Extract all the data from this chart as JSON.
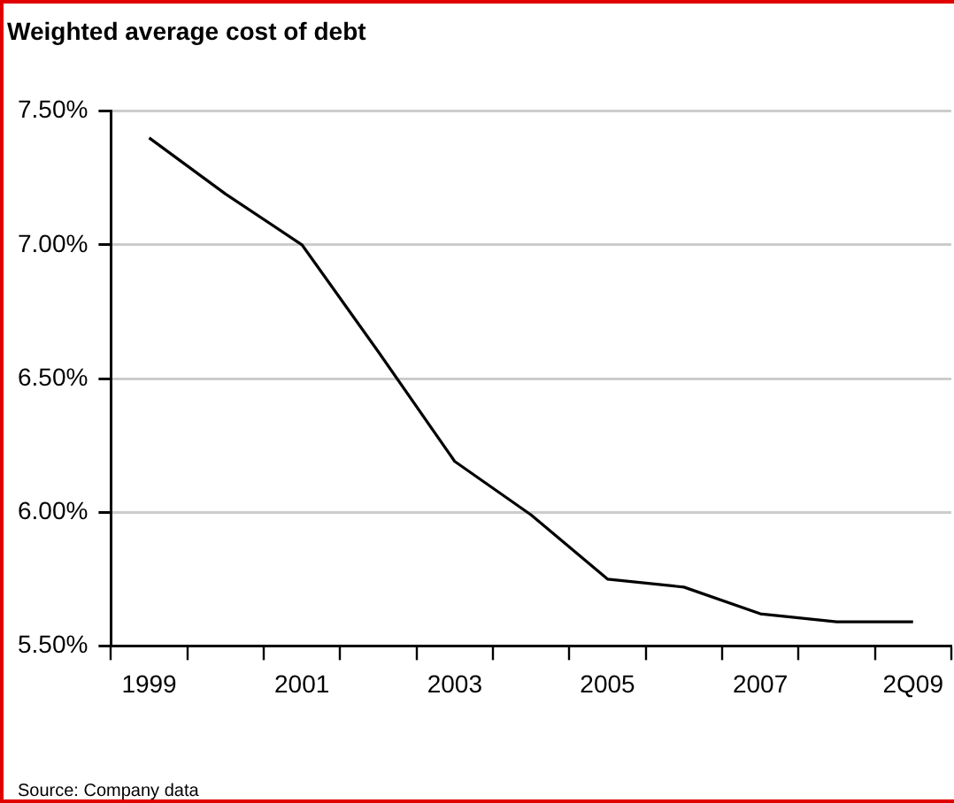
{
  "chart_data": {
    "type": "line",
    "title": "Weighted average cost of debt",
    "categories": [
      "1999",
      null,
      "2001",
      null,
      "2003",
      null,
      "2005",
      null,
      "2007",
      null,
      "2Q09"
    ],
    "series": [
      {
        "color": "#000000",
        "values": [
          7.4,
          7.19,
          7.0,
          6.6,
          6.19,
          5.99,
          5.75,
          5.72,
          5.62,
          5.59,
          5.59
        ]
      }
    ],
    "ylim": [
      5.5,
      7.5
    ],
    "yticks": [
      {
        "value": 5.5,
        "label": "5.50%"
      },
      {
        "value": 6.0,
        "label": "6.00%"
      },
      {
        "value": 6.5,
        "label": "6.50%"
      },
      {
        "value": 7.0,
        "label": "7.00%"
      },
      {
        "value": 7.5,
        "label": "7.50%"
      }
    ],
    "grid": "y",
    "legend": false,
    "marker": "none",
    "line_style": "solid",
    "annotations": [
      "Source: Company data"
    ]
  }
}
